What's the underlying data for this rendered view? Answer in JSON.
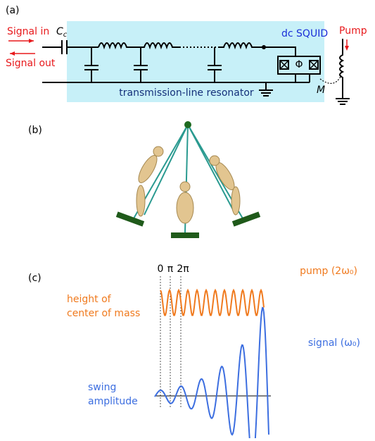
{
  "panel_a": {
    "label": "(a)",
    "signal_in": "Signal in",
    "signal_out": "Signal out",
    "cap": "C",
    "cap_sub": "c",
    "squid": "dc SQUID",
    "pump": "Pump",
    "flux": "Φ",
    "mutual": "M",
    "resonator": "transmission-line resonator"
  },
  "panel_b": {
    "label": "(b)"
  },
  "panel_c": {
    "label": "(c)",
    "phase_0": "0",
    "phase_pi": "π",
    "phase_2pi": "2π",
    "pump_label": "pump (2ω₀)",
    "height_line1": "height of",
    "height_line2": "center of mass",
    "signal_label": "signal (ω₀)",
    "swing_line1": "swing",
    "swing_line2": "amplitude"
  }
}
